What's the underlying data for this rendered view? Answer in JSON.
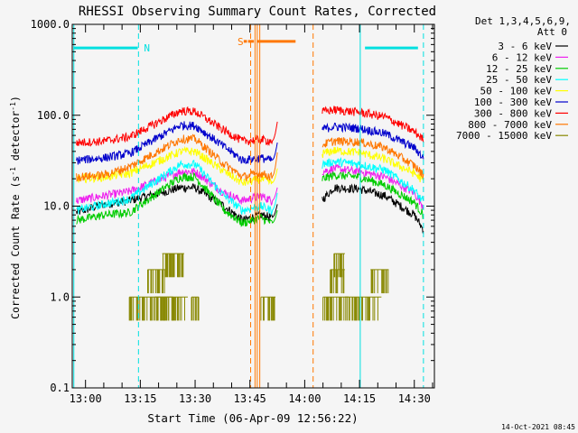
{
  "chart_data": {
    "type": "line",
    "title": "RHESSI Observing Summary Count Rates, Corrected",
    "xlabel": "Start Time (06-Apr-09 12:56:22)",
    "ylabel": "Corrected Count Rate (s⁻¹ detector⁻¹)",
    "ylabel_main": "Corrected Count Rate (s",
    "ylabel_sup1": "-1",
    "ylabel_mid": " detector",
    "ylabel_sup2": "-1",
    "ylabel_end": ")",
    "yscale": "log",
    "ylim": [
      0.1,
      1000
    ],
    "xlim_minutes": [
      56.37,
      155.5
    ],
    "x_ticks": [
      {
        "m": 60,
        "label": "13:00"
      },
      {
        "m": 75,
        "label": "13:15"
      },
      {
        "m": 90,
        "label": "13:30"
      },
      {
        "m": 105,
        "label": "13:45"
      },
      {
        "m": 120,
        "label": "14:00"
      },
      {
        "m": 135,
        "label": "14:15"
      },
      {
        "m": 150,
        "label": "14:30"
      }
    ],
    "y_ticks": [
      {
        "v": 1000,
        "label": "1000.0"
      },
      {
        "v": 100,
        "label": "100.0"
      },
      {
        "v": 10,
        "label": "10.0"
      },
      {
        "v": 1,
        "label": "1.0"
      },
      {
        "v": 0.1,
        "label": "0.1"
      }
    ],
    "legend": {
      "position": "right",
      "header1": "Det 1,3,4,5,6,9,",
      "header2": "Att 0"
    },
    "series": [
      {
        "name": "3 - 6 keV",
        "color": "#000000",
        "values": [
          8.5,
          10.5,
          11.5,
          16,
          16,
          10,
          7,
          8,
          7.5,
          12,
          16,
          15.5,
          13,
          8,
          5.5
        ]
      },
      {
        "name": "6 - 12 keV",
        "color": "#ee22ee",
        "values": [
          11.5,
          13,
          14.5,
          24,
          24,
          14,
          11.5,
          13,
          11.5,
          24,
          26,
          24,
          21,
          14,
          10
        ]
      },
      {
        "name": "12 - 25 keV",
        "color": "#00cc00",
        "values": [
          7,
          8,
          8.5,
          21,
          21,
          9,
          6.5,
          7.5,
          6.5,
          20,
          22,
          21,
          17,
          11,
          8
        ]
      },
      {
        "name": "25 - 50 keV",
        "color": "#00ffff",
        "values": [
          9,
          10.5,
          12,
          29,
          29,
          13,
          9,
          10,
          9,
          29,
          31,
          29,
          25,
          15,
          11
        ]
      },
      {
        "name": "50 - 100 keV",
        "color": "#ffff00",
        "values": [
          20,
          21,
          23,
          40,
          40,
          24,
          18,
          20,
          18,
          38,
          41,
          39,
          33,
          23,
          19
        ]
      },
      {
        "name": "100 - 300 keV",
        "color": "#0000cc",
        "values": [
          32,
          34,
          38,
          78,
          77,
          45,
          32,
          34,
          32,
          71,
          75,
          72,
          63,
          44,
          34
        ]
      },
      {
        "name": "300 - 800 keV",
        "color": "#ff0000",
        "values": [
          50,
          52,
          58,
          112,
          110,
          68,
          52,
          54,
          52,
          110,
          115,
          108,
          96,
          66,
          54
        ]
      },
      {
        "name": "800 - 7000 keV",
        "color": "#ff7700",
        "values": [
          21,
          22,
          27,
          55,
          55,
          29,
          21,
          23,
          21,
          48,
          52,
          51,
          44,
          28,
          22
        ]
      },
      {
        "name": "7000 - 15000 keV",
        "color": "#888800",
        "values": []
      }
    ],
    "series_x_minutes": [
      [
        57.5,
        65,
        72,
        86,
        90,
        98,
        103,
        108,
        111,
        125,
        128,
        135,
        142,
        150,
        152.5
      ],
      [
        57.5,
        65,
        72,
        86,
        90,
        98,
        103,
        108,
        111,
        125,
        128,
        135,
        142,
        150,
        152.5
      ],
      [
        57.5,
        65,
        72,
        86,
        90,
        98,
        103,
        108,
        111,
        125,
        128,
        135,
        142,
        150,
        152.5
      ],
      [
        57.5,
        65,
        72,
        86,
        90,
        98,
        103,
        108,
        111,
        125,
        128,
        135,
        142,
        150,
        152.5
      ],
      [
        57.5,
        65,
        72,
        86,
        90,
        98,
        103,
        108,
        111,
        125,
        128,
        135,
        142,
        150,
        152.5
      ],
      [
        57.5,
        65,
        72,
        86,
        90,
        98,
        103,
        108,
        111,
        125,
        128,
        135,
        142,
        150,
        152.5
      ],
      [
        57.5,
        65,
        72,
        86,
        90,
        98,
        103,
        108,
        111,
        125,
        128,
        135,
        142,
        150,
        152.5
      ],
      [
        57.5,
        65,
        72,
        86,
        90,
        98,
        103,
        108,
        111,
        125,
        128,
        135,
        142,
        150,
        152.5
      ],
      []
    ],
    "series_end_spike": [
      {
        "from_m": 111,
        "to_m": 112.5,
        "to_v": [
          10.5,
          16,
          9,
          14,
          26,
          50,
          85,
          39
        ]
      }
    ],
    "low_energy_blocks": [
      {
        "start": 72,
        "end": 84,
        "level": 1,
        "color": "#888800"
      },
      {
        "start": 77,
        "end": 82,
        "level": 2,
        "color": "#888800"
      },
      {
        "start": 81,
        "end": 87,
        "level": 3,
        "color": "#888800"
      },
      {
        "start": 79,
        "end": 88,
        "level": 1,
        "color": "#888800"
      },
      {
        "start": 89,
        "end": 91,
        "level": 1,
        "color": "#888800"
      },
      {
        "start": 108,
        "end": 112,
        "level": 1,
        "color": "#888800"
      },
      {
        "start": 125,
        "end": 132,
        "level": 1,
        "color": "#888800"
      },
      {
        "start": 127,
        "end": 131,
        "level": 2,
        "color": "#888800"
      },
      {
        "start": 128,
        "end": 131,
        "level": 3,
        "color": "#888800"
      },
      {
        "start": 131,
        "end": 141,
        "level": 1,
        "color": "#888800"
      },
      {
        "start": 138,
        "end": 143,
        "level": 2,
        "color": "#888800"
      }
    ],
    "block_levels": {
      "1": 1,
      "2": 2,
      "3": 3
    },
    "markers": {
      "night_label": "N",
      "saa_label": "S",
      "night_bars": [
        {
          "start": 56.7,
          "end": 74.3,
          "v": 550
        },
        {
          "start": 136.5,
          "end": 151,
          "v": 550
        }
      ],
      "saa_bars": [
        {
          "start": 103.3,
          "end": 104.2,
          "v": 650
        },
        {
          "start": 104.5,
          "end": 106.1,
          "v": 650
        },
        {
          "start": 106.9,
          "end": 117.5,
          "v": 650
        }
      ],
      "cyan_lines": [
        56.8,
        74.5,
        135.2,
        152.5
      ],
      "orange_dashed": [
        105.2,
        122.3
      ],
      "orange_solid": [
        106.4,
        107,
        107.7
      ]
    },
    "grid": false
  },
  "footer": {
    "timestamp": "14-Oct-2021 08:45"
  }
}
